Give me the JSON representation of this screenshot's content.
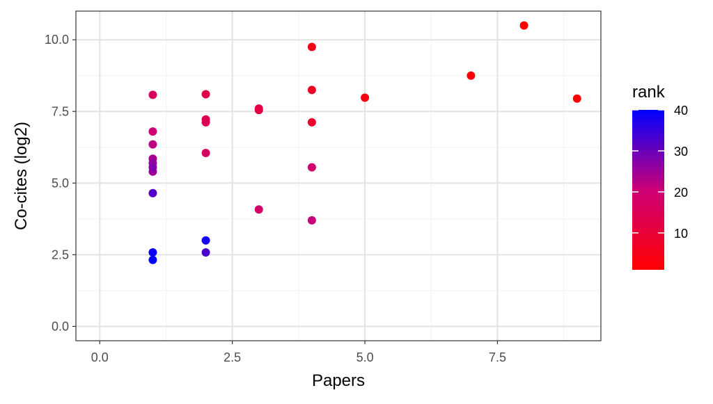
{
  "chart_data": {
    "type": "scatter",
    "xlabel": "Papers",
    "ylabel": "Co-cites (log2)",
    "xlim": [
      -0.45,
      9.45
    ],
    "ylim": [
      -0.5,
      11.0
    ],
    "x_ticks": [
      0.0,
      2.5,
      5.0,
      7.5
    ],
    "x_tick_labels": [
      "0.0",
      "2.5",
      "5.0",
      "7.5"
    ],
    "y_ticks": [
      0.0,
      2.5,
      5.0,
      7.5,
      10.0
    ],
    "y_tick_labels": [
      "0.0",
      "2.5",
      "5.0",
      "7.5",
      "10.0"
    ],
    "grid": true,
    "legend": {
      "title": "rank",
      "placement": "right",
      "min": 1,
      "max": 40,
      "ticks": [
        10,
        20,
        30,
        40
      ],
      "tick_labels": [
        "10",
        "20",
        "30",
        "40"
      ],
      "low_color": "#FF0000",
      "mid_color": "#CC0077",
      "high_color": "#0000FF"
    },
    "points": [
      {
        "x": 8,
        "y": 10.5,
        "rank": 1
      },
      {
        "x": 9,
        "y": 7.95,
        "rank": 2
      },
      {
        "x": 7,
        "y": 8.75,
        "rank": 3
      },
      {
        "x": 5,
        "y": 7.98,
        "rank": 4
      },
      {
        "x": 4,
        "y": 9.75,
        "rank": 5
      },
      {
        "x": 4,
        "y": 8.25,
        "rank": 7
      },
      {
        "x": 4,
        "y": 7.12,
        "rank": 8
      },
      {
        "x": 3,
        "y": 7.6,
        "rank": 11
      },
      {
        "x": 3,
        "y": 7.55,
        "rank": 12
      },
      {
        "x": 2,
        "y": 8.1,
        "rank": 13
      },
      {
        "x": 2,
        "y": 7.22,
        "rank": 14
      },
      {
        "x": 2,
        "y": 7.12,
        "rank": 15
      },
      {
        "x": 1,
        "y": 8.08,
        "rank": 16
      },
      {
        "x": 2,
        "y": 6.05,
        "rank": 17
      },
      {
        "x": 3,
        "y": 4.08,
        "rank": 18
      },
      {
        "x": 4,
        "y": 5.55,
        "rank": 19
      },
      {
        "x": 1,
        "y": 6.8,
        "rank": 20
      },
      {
        "x": 4,
        "y": 3.7,
        "rank": 21
      },
      {
        "x": 1,
        "y": 6.35,
        "rank": 22
      },
      {
        "x": 1,
        "y": 5.85,
        "rank": 24
      },
      {
        "x": 1,
        "y": 5.4,
        "rank": 25
      },
      {
        "x": 1,
        "y": 5.7,
        "rank": 26
      },
      {
        "x": 1,
        "y": 5.55,
        "rank": 28
      },
      {
        "x": 1,
        "y": 4.65,
        "rank": 32
      },
      {
        "x": 2,
        "y": 2.58,
        "rank": 33
      },
      {
        "x": 2,
        "y": 3.0,
        "rank": 38
      },
      {
        "x": 1,
        "y": 2.58,
        "rank": 39
      },
      {
        "x": 1,
        "y": 2.32,
        "rank": 40
      }
    ]
  }
}
